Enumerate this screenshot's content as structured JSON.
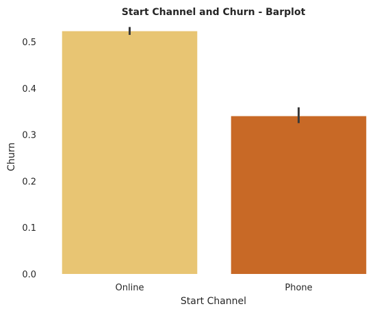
{
  "chart_data": {
    "type": "bar",
    "title": "Start Channel and Churn - Barplot",
    "xlabel": "Start Channel",
    "ylabel": "Churn",
    "categories": [
      "Online",
      "Phone"
    ],
    "values": [
      0.523,
      0.34
    ],
    "error_bars": [
      {
        "low": 0.515,
        "high": 0.532
      },
      {
        "low": 0.325,
        "high": 0.359
      }
    ],
    "colors": [
      "#e8c573",
      "#c86926"
    ],
    "errorbar_color": "#3a3a3a",
    "ylim": [
      0.0,
      0.54
    ],
    "yticks": [
      0.0,
      0.1,
      0.2,
      0.3,
      0.4,
      0.5
    ],
    "ytick_labels": [
      "0.0",
      "0.1",
      "0.2",
      "0.3",
      "0.4",
      "0.5"
    ],
    "grid": false
  }
}
